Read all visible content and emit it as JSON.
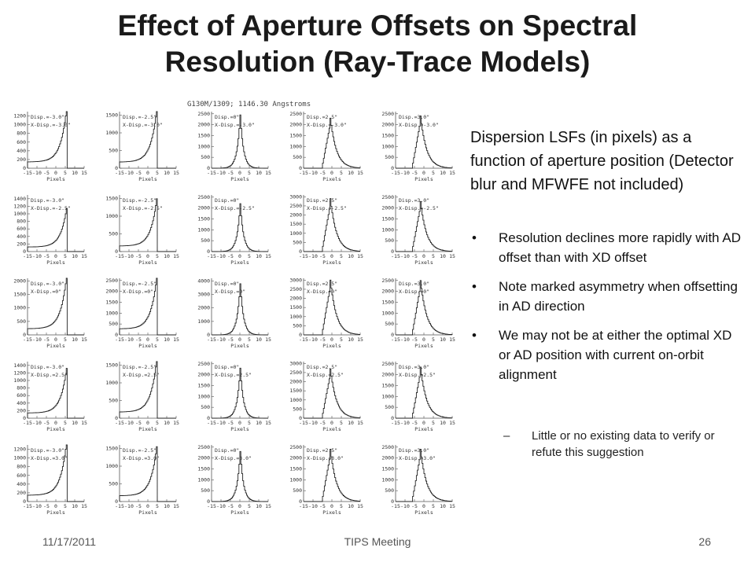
{
  "slide": {
    "title": "Effect of Aperture Offsets on Spectral Resolution (Ray-Trace Models)",
    "description": "Dispersion LSFs (in pixels) as a function of aperture position (Detector blur and MFWFE not included)",
    "bullets": [
      "Resolution declines more rapidly with AD offset than with XD offset",
      "Note marked asymmetry when offsetting in AD direction",
      "We may not be at either the optimal XD or AD position with current on-orbit alignment"
    ],
    "sub_bullets": [
      "Little or no existing data to verify or refute this suggestion"
    ],
    "bullet_glyph": "•",
    "sub_glyph": "–",
    "footer": {
      "date": "11/17/2011",
      "center": "TIPS Meeting",
      "page": "26"
    }
  },
  "chart_data": {
    "type": "line",
    "figure_title": "G130M/1309;  1146.30 Angstroms",
    "xlabel": "Pixels",
    "xticks": [
      -15,
      -10,
      -5,
      0,
      5,
      10,
      15
    ],
    "xlim": [
      -15,
      15
    ],
    "grid": false,
    "rows": [
      {
        "xdisp": "-3.0\"",
        "panels": [
          {
            "disp": "-3.0\"",
            "yticks": [
              0,
              200,
              400,
              600,
              800,
              1000,
              1200
            ],
            "ymax": 1300,
            "peak_x": 5,
            "peak": 1200,
            "profile": "left"
          },
          {
            "disp": "-2.5\"",
            "yticks": [
              0,
              500,
              1000,
              1500
            ],
            "ymax": 1600,
            "peak_x": 4,
            "peak": 1450,
            "profile": "left"
          },
          {
            "disp": "0\"",
            "yticks": [
              0,
              500,
              1000,
              1500,
              2000,
              2500
            ],
            "ymax": 2600,
            "peak_x": 0,
            "peak": 2450,
            "profile": "center"
          },
          {
            "disp": "2.5\"",
            "yticks": [
              0,
              500,
              1000,
              1500,
              2000,
              2500
            ],
            "ymax": 2600,
            "peak_x": -1,
            "peak": 2300,
            "profile": "right"
          },
          {
            "disp": "3.0\"",
            "yticks": [
              0,
              500,
              1000,
              1500,
              2000,
              2500
            ],
            "ymax": 2600,
            "peak_x": -2,
            "peak": 2400,
            "profile": "right"
          }
        ]
      },
      {
        "xdisp": "-2.5\"",
        "panels": [
          {
            "disp": "-3.0\"",
            "yticks": [
              0,
              200,
              400,
              600,
              800,
              1000,
              1200,
              1400
            ],
            "ymax": 1500,
            "peak_x": 5,
            "peak": 1000,
            "profile": "left"
          },
          {
            "disp": "-2.5\"",
            "yticks": [
              0,
              500,
              1000,
              1500
            ],
            "ymax": 1600,
            "peak_x": 4,
            "peak": 1300,
            "profile": "left"
          },
          {
            "disp": "0\"",
            "yticks": [
              0,
              500,
              1000,
              1500,
              2000,
              2500
            ],
            "ymax": 2600,
            "peak_x": 0,
            "peak": 2200,
            "profile": "center"
          },
          {
            "disp": "2.5\"",
            "yticks": [
              0,
              500,
              1000,
              1500,
              2000,
              2500,
              3000
            ],
            "ymax": 3100,
            "peak_x": -1,
            "peak": 2900,
            "profile": "right"
          },
          {
            "disp": "3.0\"",
            "yticks": [
              0,
              500,
              1000,
              1500,
              2000,
              2500
            ],
            "ymax": 2600,
            "peak_x": -2,
            "peak": 2300,
            "profile": "right"
          }
        ]
      },
      {
        "xdisp": "0\"",
        "panels": [
          {
            "disp": "-3.0\"",
            "yticks": [
              0,
              500,
              1000,
              1500,
              2000
            ],
            "ymax": 2100,
            "peak_x": 5,
            "peak": 1900,
            "profile": "left"
          },
          {
            "disp": "-2.5\"",
            "yticks": [
              0,
              500,
              1000,
              1500,
              2000,
              2500
            ],
            "ymax": 2600,
            "peak_x": 4,
            "peak": 2300,
            "profile": "left"
          },
          {
            "disp": "0\"",
            "yticks": [
              0,
              1000,
              2000,
              3000,
              4000
            ],
            "ymax": 4200,
            "peak_x": 0,
            "peak": 3800,
            "profile": "center"
          },
          {
            "disp": "2.5\"",
            "yticks": [
              0,
              500,
              1000,
              1500,
              2000,
              2500,
              3000
            ],
            "ymax": 3100,
            "peak_x": -1,
            "peak": 3000,
            "profile": "right"
          },
          {
            "disp": "3.0\"",
            "yticks": [
              0,
              500,
              1000,
              1500,
              2000,
              2500
            ],
            "ymax": 2600,
            "peak_x": -2,
            "peak": 2500,
            "profile": "right"
          }
        ]
      },
      {
        "xdisp": "2.5\"",
        "panels": [
          {
            "disp": "-3.0\"",
            "yticks": [
              0,
              200,
              400,
              600,
              800,
              1000,
              1200,
              1400
            ],
            "ymax": 1500,
            "peak_x": 5,
            "peak": 1150,
            "profile": "left"
          },
          {
            "disp": "-2.5\"",
            "yticks": [
              0,
              500,
              1000,
              1500
            ],
            "ymax": 1600,
            "peak_x": 4,
            "peak": 1450,
            "profile": "left"
          },
          {
            "disp": "0\"",
            "yticks": [
              0,
              500,
              1000,
              1500,
              2000,
              2500
            ],
            "ymax": 2600,
            "peak_x": 0,
            "peak": 2300,
            "profile": "center"
          },
          {
            "disp": "2.5\"",
            "yticks": [
              0,
              500,
              1000,
              1500,
              2000,
              2500,
              3000
            ],
            "ymax": 3100,
            "peak_x": -1,
            "peak": 2700,
            "profile": "right"
          },
          {
            "disp": "3.0\"",
            "yticks": [
              0,
              500,
              1000,
              1500,
              2000,
              2500
            ],
            "ymax": 2600,
            "peak_x": -2,
            "peak": 2350,
            "profile": "right"
          }
        ]
      },
      {
        "xdisp": "3.0\"",
        "panels": [
          {
            "disp": "-3.0\"",
            "yticks": [
              0,
              200,
              400,
              600,
              800,
              1000,
              1200
            ],
            "ymax": 1300,
            "peak_x": 5,
            "peak": 1200,
            "profile": "left"
          },
          {
            "disp": "-2.5\"",
            "yticks": [
              0,
              500,
              1000,
              1500
            ],
            "ymax": 1600,
            "peak_x": 4,
            "peak": 1350,
            "profile": "left"
          },
          {
            "disp": "0\"",
            "yticks": [
              0,
              500,
              1000,
              1500,
              2000,
              2500
            ],
            "ymax": 2600,
            "peak_x": 0,
            "peak": 2300,
            "profile": "center"
          },
          {
            "disp": "2.5\"",
            "yticks": [
              0,
              500,
              1000,
              1500,
              2000,
              2500
            ],
            "ymax": 2600,
            "peak_x": -1,
            "peak": 2400,
            "profile": "right"
          },
          {
            "disp": "3.0\"",
            "yticks": [
              0,
              500,
              1000,
              1500,
              2000,
              2500
            ],
            "ymax": 2600,
            "peak_x": -2,
            "peak": 2400,
            "profile": "right"
          }
        ]
      }
    ]
  }
}
